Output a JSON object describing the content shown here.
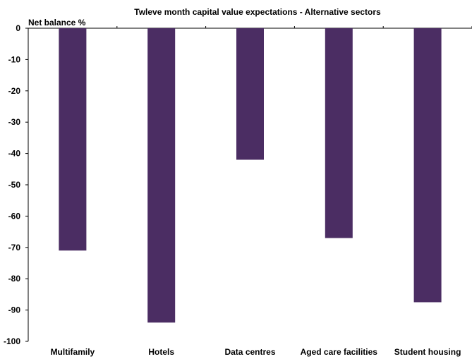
{
  "chart_data": {
    "type": "bar",
    "title": "Twleve month capital value expectations - Alternative sectors",
    "ylabel": "Net balance %",
    "xlabel": "",
    "categories": [
      "Multifamily",
      "Hotels",
      "Data centres",
      "Aged care facilities",
      "Student housing"
    ],
    "values": [
      -71,
      -94,
      -42,
      -67,
      -87.5
    ],
    "ylim": [
      -100,
      0
    ],
    "yticks": [
      0,
      -10,
      -20,
      -30,
      -40,
      -50,
      -60,
      -70,
      -80,
      -90,
      -100
    ],
    "bar_color": "#4b2d63",
    "axis_color": "#000000",
    "grid": false,
    "legend": "none"
  }
}
